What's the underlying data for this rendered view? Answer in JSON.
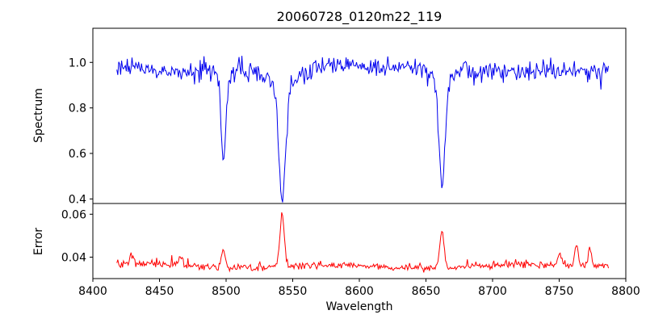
{
  "figure": {
    "title": "20060728_0120m22_119",
    "xlabel": "Wavelength",
    "background": "#ffffff"
  },
  "chart_data": [
    {
      "type": "line",
      "panel": "spectrum",
      "title": "20060728_0120m22_119",
      "xlabel": "",
      "ylabel": "Spectrum",
      "xlim": [
        8400,
        8800
      ],
      "ylim": [
        0.38,
        1.15
      ],
      "yticks": [
        0.4,
        0.6,
        0.8,
        1.0
      ],
      "ytick_labels": [
        "0.4",
        "0.6",
        "0.8",
        "1.0"
      ],
      "grid": false,
      "legend": "none",
      "series": [
        {
          "name": "spectrum",
          "color": "#0000ee",
          "x_start": 8418,
          "x_end": 8787,
          "n_points": 520,
          "continuum_level": 0.97,
          "noise_sigma": 0.022,
          "absorption_lines": [
            {
              "center": 8498.0,
              "core_depth": 0.36,
              "core_sigma": 1.8,
              "wing_depth": 0.04,
              "wing_sigma": 5.0,
              "min_value": 0.58
            },
            {
              "center": 8542.1,
              "core_depth": 0.5,
              "core_sigma": 2.4,
              "wing_depth": 0.07,
              "wing_sigma": 9.0,
              "min_value": 0.4
            },
            {
              "center": 8662.1,
              "core_depth": 0.46,
              "core_sigma": 2.2,
              "wing_depth": 0.06,
              "wing_sigma": 7.0,
              "min_value": 0.44
            }
          ]
        }
      ]
    },
    {
      "type": "line",
      "panel": "error",
      "xlabel": "Wavelength",
      "ylabel": "Error",
      "xlim": [
        8400,
        8800
      ],
      "ylim": [
        0.03,
        0.065
      ],
      "xticks": [
        8400,
        8450,
        8500,
        8550,
        8600,
        8650,
        8700,
        8750,
        8800
      ],
      "xtick_labels": [
        "8400",
        "8450",
        "8500",
        "8550",
        "8600",
        "8650",
        "8700",
        "8750",
        "8800"
      ],
      "yticks": [
        0.04,
        0.06
      ],
      "ytick_labels": [
        "0.04",
        "0.06"
      ],
      "grid": false,
      "legend": "none",
      "series": [
        {
          "name": "error",
          "color": "#ff0000",
          "x_start": 8418,
          "x_end": 8787,
          "n_points": 520,
          "baseline_level": 0.0355,
          "noise_sigma": 0.0008,
          "peaks": [
            {
              "center": 8429,
              "height": 0.003,
              "sigma": 1.5
            },
            {
              "center": 8466,
              "height": 0.005,
              "sigma": 1.2
            },
            {
              "center": 8498,
              "height": 0.008,
              "sigma": 1.5
            },
            {
              "center": 8542,
              "height": 0.025,
              "sigma": 1.6,
              "peak_value": 0.061
            },
            {
              "center": 8662,
              "height": 0.017,
              "sigma": 1.6,
              "peak_value": 0.053
            },
            {
              "center": 8750,
              "height": 0.005,
              "sigma": 1.4
            },
            {
              "center": 8763,
              "height": 0.009,
              "sigma": 1.4
            },
            {
              "center": 8773,
              "height": 0.008,
              "sigma": 1.4
            }
          ]
        }
      ]
    }
  ]
}
